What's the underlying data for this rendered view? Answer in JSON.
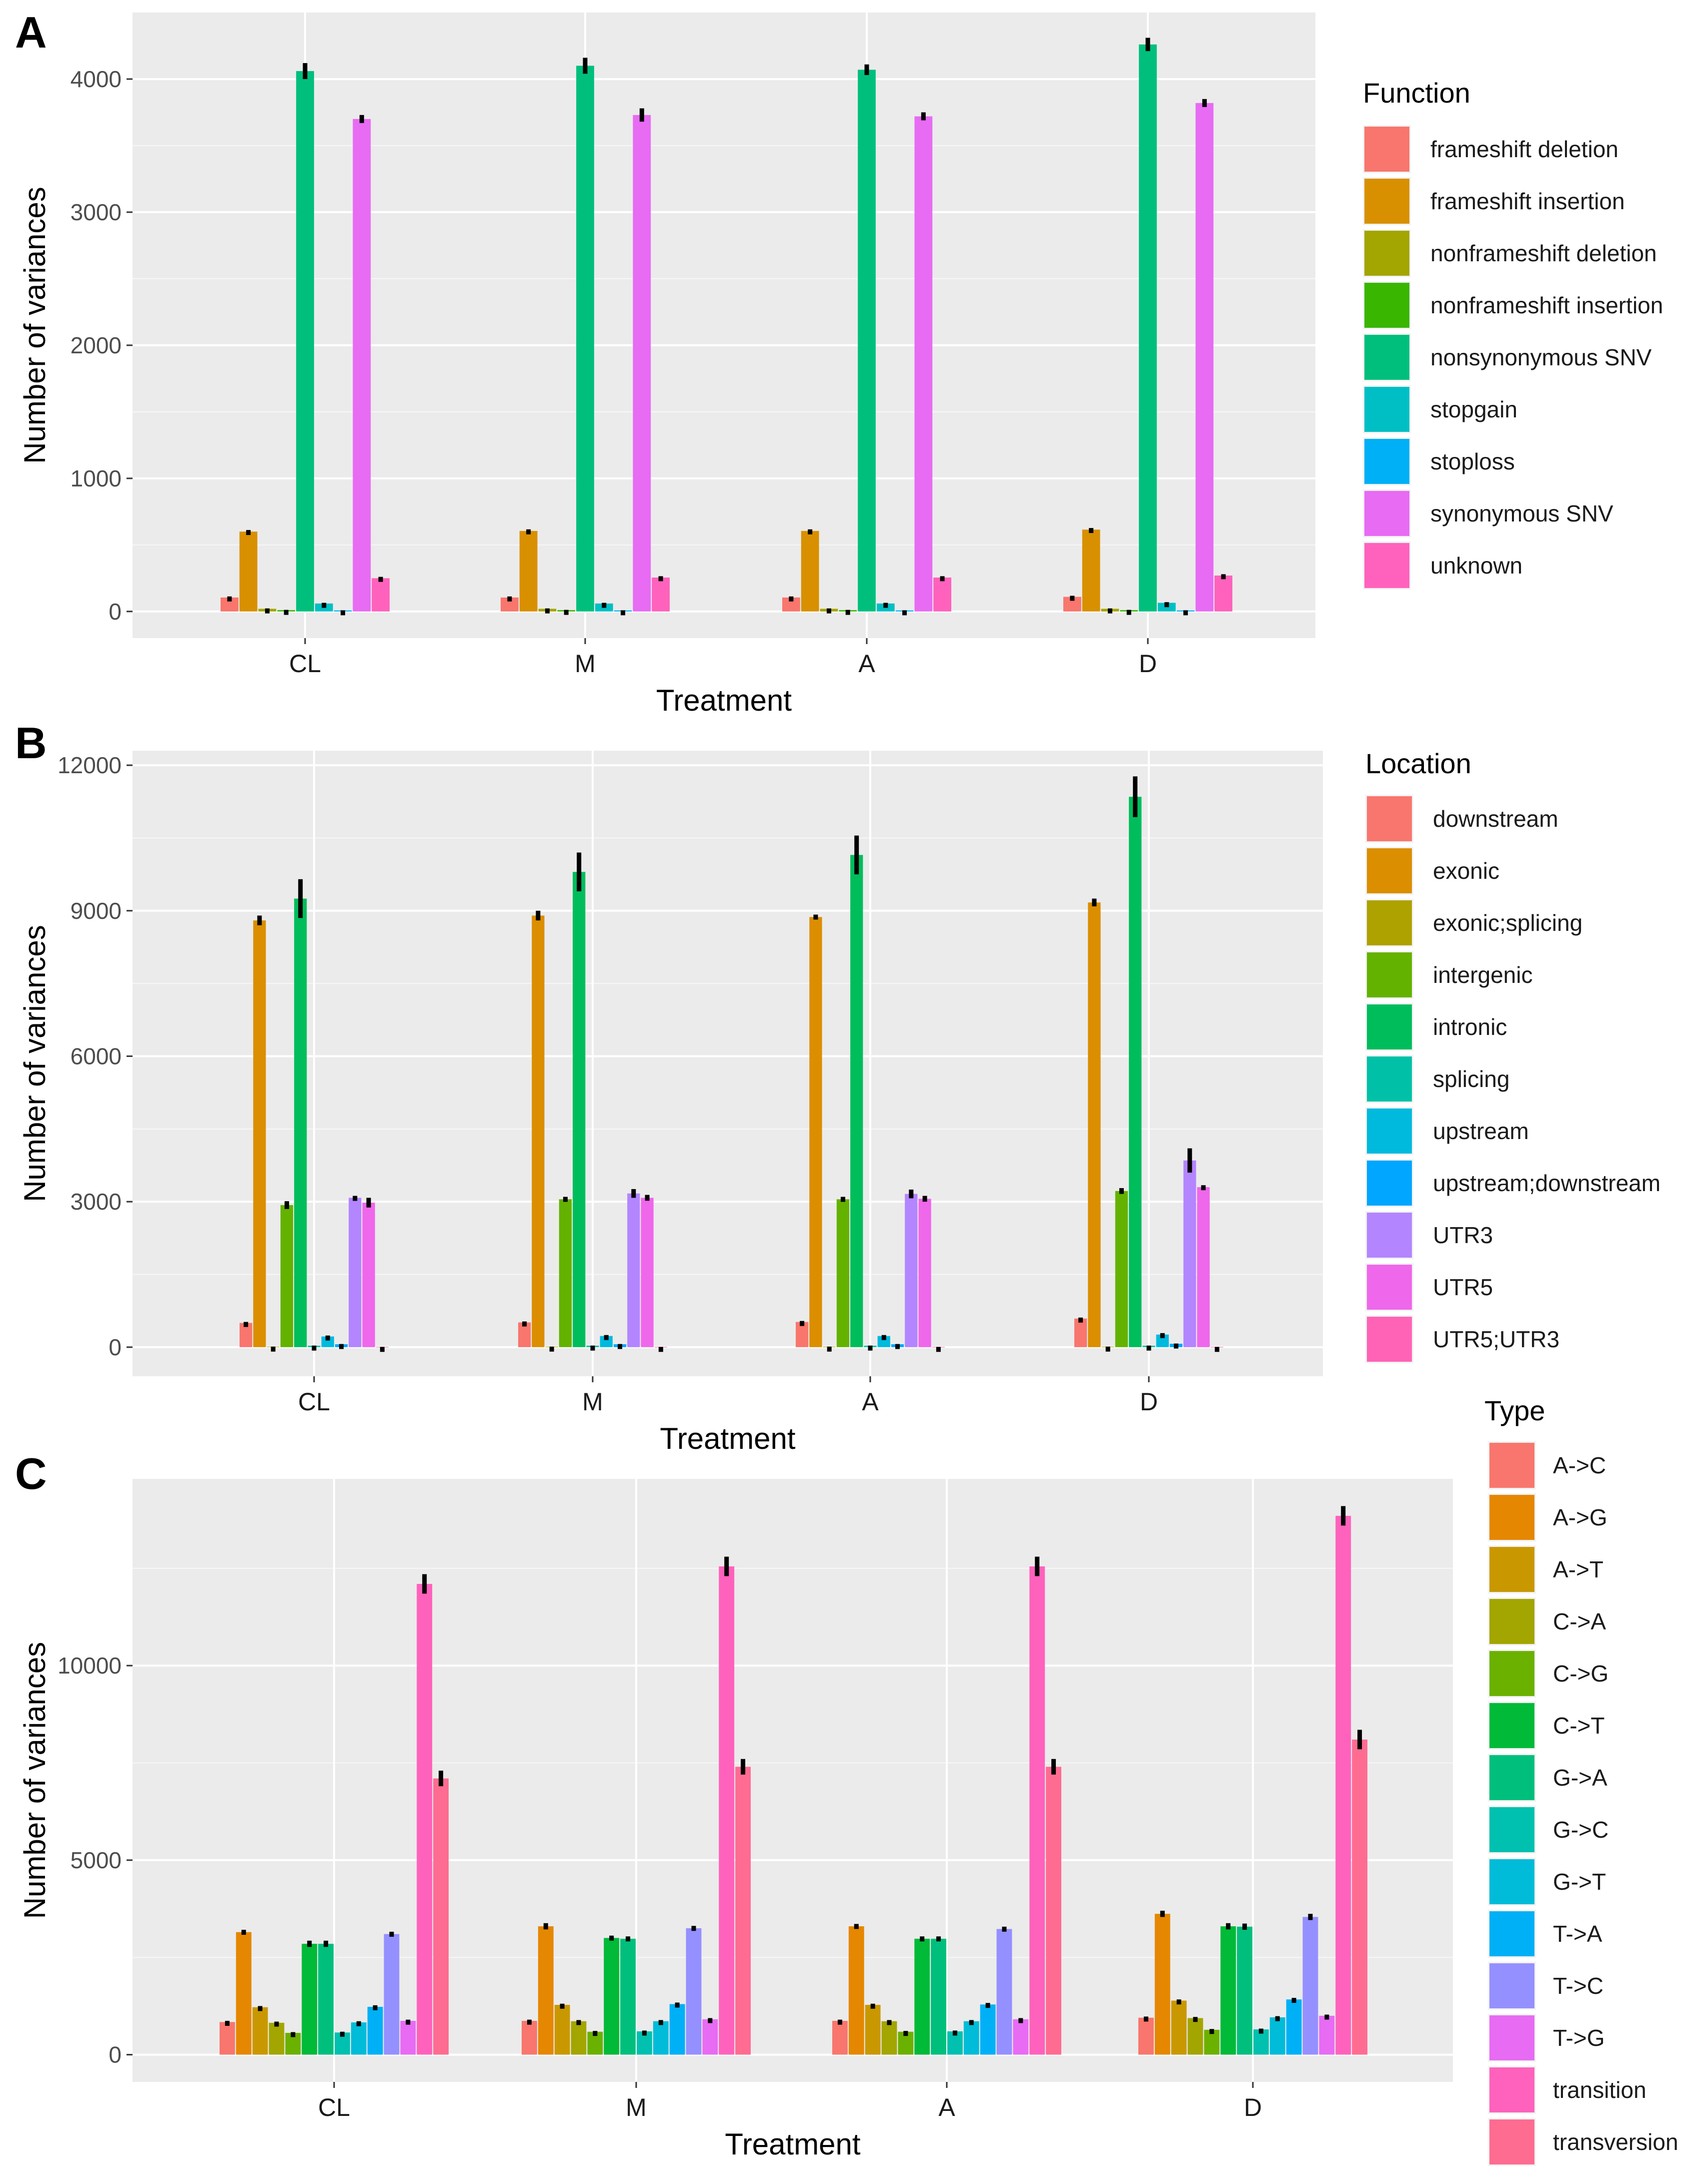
{
  "chart_data": [
    {
      "panel": "A",
      "type": "bar",
      "xlabel": "Treatment",
      "ylabel": "Number of variances",
      "categories": [
        "CL",
        "M",
        "A",
        "D"
      ],
      "ylim": [
        -200,
        4500
      ],
      "yticks": [
        0,
        1000,
        2000,
        3000,
        4000
      ],
      "ytick_labels": [
        "0",
        "1000",
        "2000",
        "3000",
        "4000"
      ],
      "legend_title": "Function",
      "series": [
        {
          "name": "frameshift deletion",
          "color": "#F8766D",
          "values": [
            105,
            105,
            105,
            110
          ],
          "errors": [
            8,
            8,
            8,
            8
          ]
        },
        {
          "name": "frameshift insertion",
          "color": "#D89000",
          "values": [
            600,
            605,
            605,
            615
          ],
          "errors": [
            12,
            12,
            12,
            12
          ]
        },
        {
          "name": "nonframeshift deletion",
          "color": "#A3A500",
          "values": [
            20,
            20,
            20,
            20
          ],
          "errors": [
            3,
            3,
            3,
            3
          ]
        },
        {
          "name": "nonframeshift insertion",
          "color": "#39B600",
          "values": [
            10,
            10,
            10,
            10
          ],
          "errors": [
            2,
            2,
            2,
            2
          ]
        },
        {
          "name": "nonsynonymous SNV",
          "color": "#00BF7D",
          "values": [
            4060,
            4100,
            4070,
            4260
          ],
          "errors": [
            60,
            60,
            40,
            50
          ]
        },
        {
          "name": "stopgain",
          "color": "#00BFC4",
          "values": [
            60,
            60,
            60,
            65
          ],
          "errors": [
            5,
            5,
            5,
            5
          ]
        },
        {
          "name": "stoploss",
          "color": "#00B0F6",
          "values": [
            8,
            8,
            8,
            8
          ],
          "errors": [
            1,
            1,
            1,
            1
          ]
        },
        {
          "name": "synonymous SNV",
          "color": "#E76BF3",
          "values": [
            3700,
            3730,
            3720,
            3820
          ],
          "errors": [
            30,
            50,
            30,
            30
          ]
        },
        {
          "name": "unknown",
          "color": "#FF62BC",
          "values": [
            250,
            255,
            255,
            270
          ],
          "errors": [
            10,
            10,
            10,
            10
          ]
        }
      ]
    },
    {
      "panel": "B",
      "type": "bar",
      "xlabel": "Treatment",
      "ylabel": "Number of variances",
      "categories": [
        "CL",
        "M",
        "A",
        "D"
      ],
      "ylim": [
        -600,
        12300
      ],
      "yticks": [
        0,
        3000,
        6000,
        9000,
        12000
      ],
      "ytick_labels": [
        "0",
        "3000",
        "6000",
        "9000",
        "12000"
      ],
      "legend_title": "Location",
      "series": [
        {
          "name": "downstream",
          "color": "#F8766D",
          "values": [
            500,
            510,
            520,
            590
          ],
          "errors": [
            20,
            20,
            20,
            20
          ]
        },
        {
          "name": "exonic",
          "color": "#DB8E00",
          "values": [
            8800,
            8900,
            8870,
            9170
          ],
          "errors": [
            100,
            100,
            50,
            80
          ]
        },
        {
          "name": "exonic;splicing",
          "color": "#AEA200",
          "values": [
            10,
            10,
            10,
            10
          ],
          "errors": [
            2,
            2,
            2,
            2
          ]
        },
        {
          "name": "intergenic",
          "color": "#64B200",
          "values": [
            2930,
            3050,
            3050,
            3220
          ],
          "errors": [
            80,
            50,
            50,
            60
          ]
        },
        {
          "name": "intronic",
          "color": "#00BD5C",
          "values": [
            9250,
            9800,
            10150,
            11350
          ],
          "errors": [
            400,
            400,
            400,
            420
          ]
        },
        {
          "name": "splicing",
          "color": "#00C1A7",
          "values": [
            30,
            30,
            30,
            30
          ],
          "errors": [
            3,
            3,
            3,
            3
          ]
        },
        {
          "name": "upstream",
          "color": "#00BADE",
          "values": [
            220,
            230,
            230,
            260
          ],
          "errors": [
            20,
            20,
            20,
            30
          ]
        },
        {
          "name": "upstream;downstream",
          "color": "#00A6FF",
          "values": [
            60,
            60,
            60,
            70
          ],
          "errors": [
            5,
            5,
            5,
            5
          ]
        },
        {
          "name": "UTR3",
          "color": "#B385FF",
          "values": [
            3080,
            3170,
            3160,
            3850
          ],
          "errors": [
            40,
            90,
            90,
            250
          ]
        },
        {
          "name": "UTR5",
          "color": "#EF67EB",
          "values": [
            2980,
            3080,
            3060,
            3300
          ],
          "errors": [
            100,
            60,
            60,
            40
          ]
        },
        {
          "name": "UTR5;UTR3",
          "color": "#FF63B6",
          "values": [
            5,
            5,
            5,
            5
          ],
          "errors": [
            1,
            1,
            1,
            1
          ]
        }
      ]
    },
    {
      "panel": "C",
      "type": "bar",
      "xlabel": "Treatment",
      "ylabel": "Number of variances",
      "categories": [
        "CL",
        "M",
        "A",
        "D"
      ],
      "ylim": [
        -700,
        14800
      ],
      "yticks": [
        0,
        5000,
        10000
      ],
      "ytick_labels": [
        "0",
        "5000",
        "10000"
      ],
      "legend_title": "Type",
      "series": [
        {
          "name": "A->C",
          "color": "#F8766D",
          "values": [
            840,
            870,
            870,
            950
          ],
          "errors": [
            30,
            30,
            30,
            30
          ]
        },
        {
          "name": "A->G",
          "color": "#E58700",
          "values": [
            3150,
            3300,
            3300,
            3620
          ],
          "errors": [
            60,
            80,
            60,
            80
          ]
        },
        {
          "name": "A->T",
          "color": "#C99800",
          "values": [
            1220,
            1280,
            1280,
            1390
          ],
          "errors": [
            30,
            30,
            30,
            30
          ]
        },
        {
          "name": "C->A",
          "color": "#A3A500",
          "values": [
            820,
            860,
            860,
            940
          ],
          "errors": [
            30,
            30,
            30,
            30
          ]
        },
        {
          "name": "C->G",
          "color": "#6BB100",
          "values": [
            560,
            590,
            590,
            640
          ],
          "errors": [
            20,
            20,
            20,
            20
          ]
        },
        {
          "name": "C->T",
          "color": "#00BA38",
          "values": [
            2850,
            3000,
            2980,
            3300
          ],
          "errors": [
            80,
            60,
            60,
            80
          ]
        },
        {
          "name": "G->A",
          "color": "#00BF7D",
          "values": [
            2850,
            2980,
            2980,
            3290
          ],
          "errors": [
            80,
            60,
            60,
            80
          ]
        },
        {
          "name": "G->C",
          "color": "#00C0AF",
          "values": [
            570,
            600,
            600,
            650
          ],
          "errors": [
            20,
            20,
            20,
            20
          ]
        },
        {
          "name": "G->T",
          "color": "#00BCD8",
          "values": [
            830,
            860,
            860,
            960
          ],
          "errors": [
            30,
            30,
            30,
            30
          ]
        },
        {
          "name": "T->A",
          "color": "#00B0F6",
          "values": [
            1230,
            1300,
            1290,
            1420
          ],
          "errors": [
            40,
            40,
            40,
            40
          ]
        },
        {
          "name": "T->C",
          "color": "#9590FF",
          "values": [
            3100,
            3250,
            3230,
            3540
          ],
          "errors": [
            60,
            60,
            60,
            80
          ]
        },
        {
          "name": "T->G",
          "color": "#E76BF3",
          "values": [
            870,
            910,
            910,
            1000
          ],
          "errors": [
            30,
            30,
            30,
            30
          ]
        },
        {
          "name": "transition",
          "color": "#FF62BC",
          "values": [
            12100,
            12550,
            12550,
            13850
          ],
          "errors": [
            250,
            250,
            250,
            250
          ]
        },
        {
          "name": "transversion",
          "color": "#FF6C91",
          "values": [
            7100,
            7400,
            7400,
            8100
          ],
          "errors": [
            200,
            200,
            200,
            250
          ]
        }
      ]
    }
  ]
}
